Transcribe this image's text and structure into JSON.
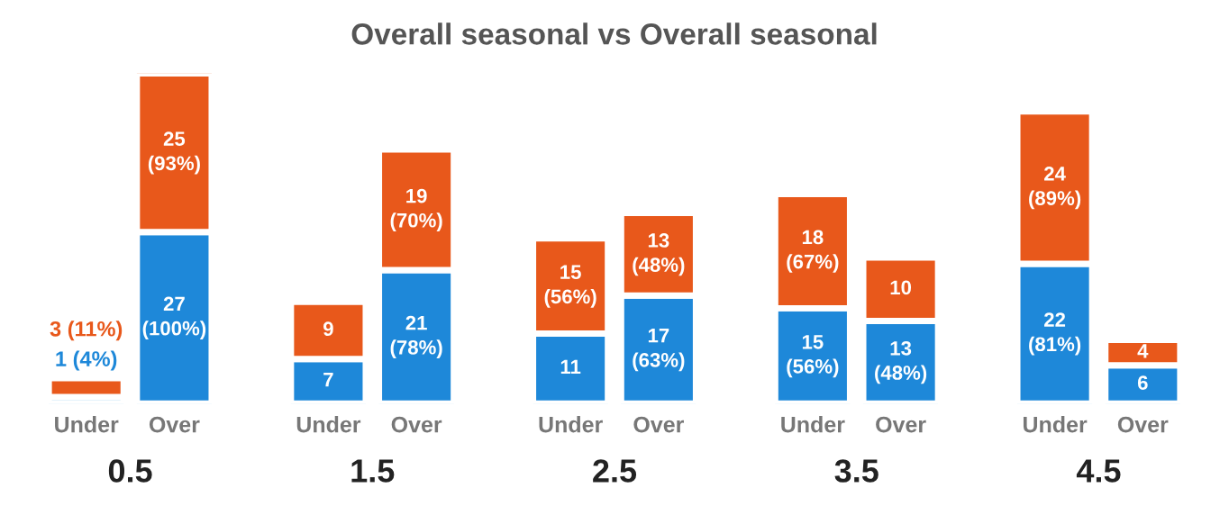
{
  "chart_data": {
    "type": "bar",
    "title": "Overall seasonal vs Overall seasonal",
    "categories": [
      "Under",
      "Over",
      "Under",
      "Over",
      "Under",
      "Over",
      "Under",
      "Over",
      "Under",
      "Over"
    ],
    "stacked": true,
    "tick_labels": "x",
    "grid": false,
    "series": [
      {
        "color": "#1e88d9",
        "values": [
          1,
          27,
          7,
          21,
          11,
          17,
          15,
          13,
          22,
          6
        ],
        "value_labels": [
          "1 (4%)",
          "27\n(100%)",
          "7",
          "21\n(78%)",
          "11",
          "17\n(63%)",
          "15\n(56%)",
          "13\n(48%)",
          "22\n(81%)",
          "6"
        ]
      },
      {
        "color": "#e8581b",
        "values": [
          3,
          25,
          9,
          19,
          15,
          13,
          18,
          10,
          24,
          4
        ],
        "value_labels": [
          "3 (11%)",
          "25\n(93%)",
          "9",
          "19\n(70%)",
          "15\n(56%)",
          "13\n(48%)",
          "18\n(67%)",
          "10",
          "24\n(89%)",
          "4"
        ]
      }
    ],
    "annotations": [
      "0.5",
      "1.5",
      "2.5",
      "3.5",
      "4.5"
    ]
  }
}
